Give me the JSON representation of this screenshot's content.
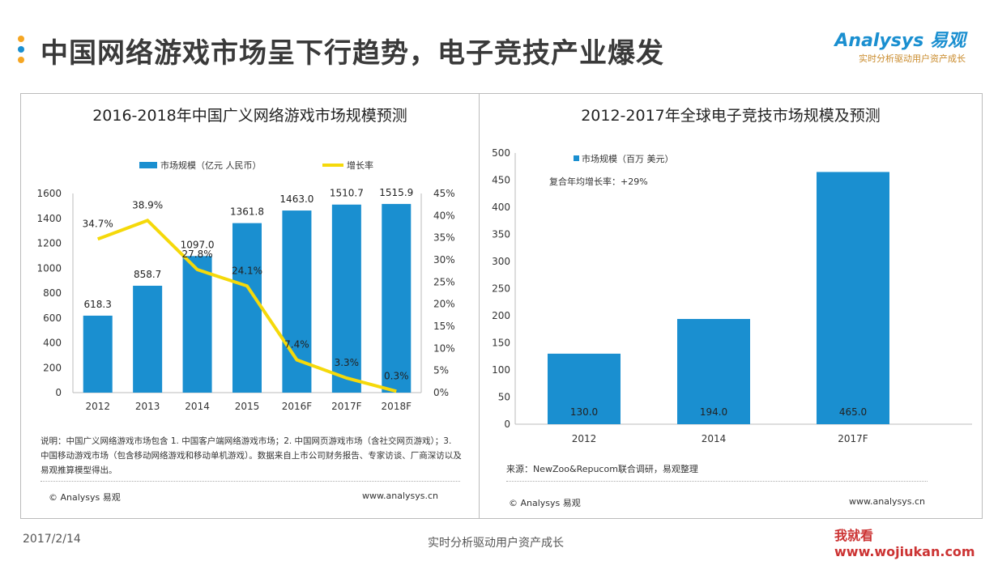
{
  "header": {
    "title": "中国网络游戏市场呈下行趋势，电子竞技产业爆发",
    "logo_name": "Analysys 易观",
    "logo_tagline": "实时分析驱动用户资产成长"
  },
  "colors": {
    "bar": "#1a8fd0",
    "line": "#f5d90a",
    "dots": [
      "#f5a623",
      "#1a8fd0",
      "#f5a623"
    ]
  },
  "chart_data": [
    {
      "type": "bar+line",
      "title": "2016-2018年中国广义网络游戏市场规模预测",
      "categories": [
        "2012",
        "2013",
        "2014",
        "2015",
        "2016F",
        "2017F",
        "2018F"
      ],
      "series": [
        {
          "name": "市场规模（亿元 人民币）",
          "type": "bar",
          "axis": "left",
          "values": [
            618.3,
            858.7,
            1097.0,
            1361.8,
            1463.0,
            1510.7,
            1515.9
          ],
          "labels": [
            "618.3",
            "858.7",
            "1097.0",
            "1361.8",
            "1463.0",
            "1510.7",
            "1515.9"
          ]
        },
        {
          "name": "增长率",
          "type": "line",
          "axis": "right",
          "values": [
            34.7,
            38.9,
            27.8,
            24.1,
            7.4,
            3.3,
            0.3
          ],
          "labels": [
            "34.7%",
            "38.9%",
            "27.8%",
            "24.1%",
            "7.4%",
            "3.3%",
            "0.3%"
          ]
        }
      ],
      "ylim": [
        0,
        1600
      ],
      "yticks": [
        "0",
        "200",
        "400",
        "600",
        "800",
        "1000",
        "1200",
        "1400",
        "1600"
      ],
      "y2lim": [
        0,
        45
      ],
      "y2ticks": [
        "0%",
        "5%",
        "10%",
        "15%",
        "20%",
        "25%",
        "30%",
        "35%",
        "40%",
        "45%"
      ],
      "legend": "top",
      "grid": false,
      "note": "说明：中国广义网络游戏市场包含 1. 中国客户端网络游戏市场；2. 中国网页游戏市场（含社交网页游戏）；3. 中国移动游戏市场（包含移动网络游戏和移动单机游戏）。数据来自上市公司财务报告、专家访谈、厂商深访以及易观推算模型得出。",
      "copyright": "© Analysys 易观",
      "website": "www.analysys.cn"
    },
    {
      "type": "bar",
      "title": "2012-2017年全球电子竞技市场规模及预测",
      "categories": [
        "2012",
        "2014",
        "2017F"
      ],
      "series": [
        {
          "name": "市场规模（百万 美元）",
          "values": [
            130.0,
            194.0,
            465.0
          ],
          "labels": [
            "130.0",
            "194.0",
            "465.0"
          ]
        }
      ],
      "ylim": [
        0,
        500
      ],
      "yticks": [
        "0",
        "50",
        "100",
        "150",
        "200",
        "250",
        "300",
        "350",
        "400",
        "450",
        "500"
      ],
      "annotation": "复合年均增长率：+29%",
      "legend": "top-left",
      "grid": false,
      "source": "来源：NewZoo&Repucom联合调研，易观整理",
      "copyright": "© Analysys 易观",
      "website": "www.analysys.cn"
    }
  ],
  "footer": {
    "date": "2017/2/14",
    "tagline": "实时分析驱动用户资产成长",
    "watermark": "我就看 www.wojiukan.com"
  }
}
